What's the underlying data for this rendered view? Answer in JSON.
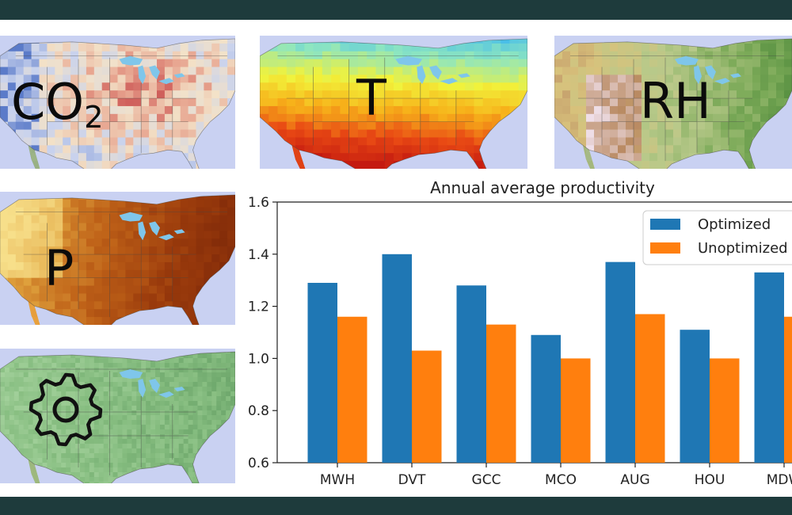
{
  "maps": [
    {
      "id": "co2",
      "label": "CO",
      "label_sub": "2",
      "theme": "co2"
    },
    {
      "id": "temperature",
      "label": "T",
      "label_sub": "",
      "theme": "temperature"
    },
    {
      "id": "humidity",
      "label": "RH",
      "label_sub": "",
      "theme": "humidity"
    },
    {
      "id": "pressure",
      "label": "P",
      "label_sub": "",
      "theme": "pressure"
    },
    {
      "id": "settings",
      "label": "",
      "label_sub": "",
      "theme": "grid",
      "icon": "gear-icon"
    }
  ],
  "colors": {
    "band": "#1e3b3c",
    "ocean": "#c9d1f2",
    "lakes": "#7fc6ea",
    "optimized": "#1f77b4",
    "unoptimized": "#ff7f0e"
  },
  "chart_data": {
    "type": "bar",
    "title": "Annual average productivity",
    "xlabel": "",
    "ylabel": "",
    "categories": [
      "MWH",
      "DVT",
      "GCC",
      "MCO",
      "AUG",
      "HOU",
      "MDW"
    ],
    "series": [
      {
        "name": "Optimized",
        "color": "#1f77b4",
        "values": [
          1.29,
          1.4,
          1.28,
          1.09,
          1.37,
          1.11,
          1.33
        ]
      },
      {
        "name": "Unoptimized",
        "color": "#ff7f0e",
        "values": [
          1.16,
          1.03,
          1.13,
          1.0,
          1.17,
          1.0,
          1.16
        ]
      }
    ],
    "ylim": [
      0.6,
      1.6
    ],
    "yticks": [
      "0.6",
      "0.8",
      "1.0",
      "1.2",
      "1.4",
      "1.6"
    ],
    "grid": false,
    "legend_position": "top-right"
  }
}
